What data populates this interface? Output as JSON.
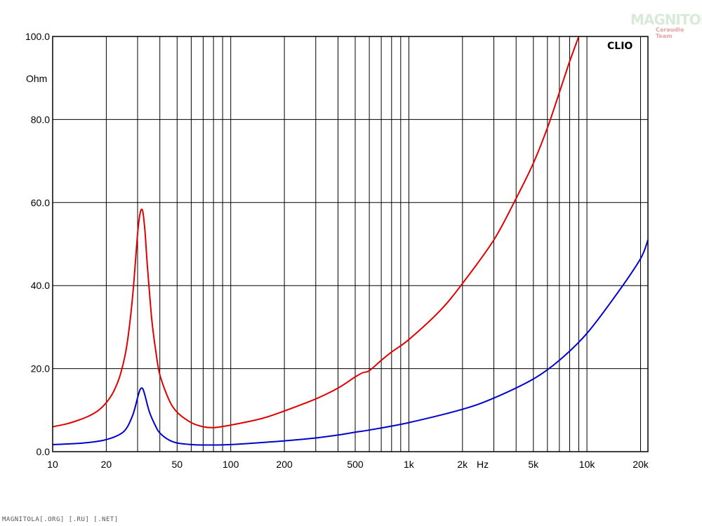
{
  "chart_data": {
    "type": "line",
    "title": "",
    "brand": "CLIO",
    "xlabel": "Hz",
    "ylabel": "Ohm",
    "xscale": "log",
    "xlim": [
      10,
      22000
    ],
    "ylim": [
      0,
      100
    ],
    "grid": true,
    "y_ticks": [
      "0.0",
      "20.0",
      "40.0",
      "60.0",
      "80.0",
      "100.0"
    ],
    "x_ticks": [
      {
        "value": 10,
        "label": "10"
      },
      {
        "value": 20,
        "label": "20"
      },
      {
        "value": 50,
        "label": "50"
      },
      {
        "value": 100,
        "label": "100"
      },
      {
        "value": 200,
        "label": "200"
      },
      {
        "value": 500,
        "label": "500"
      },
      {
        "value": 1000,
        "label": "1k"
      },
      {
        "value": 2000,
        "label": "2k"
      },
      {
        "value": 5000,
        "label": "5k"
      },
      {
        "value": 10000,
        "label": "10k"
      },
      {
        "value": 20000,
        "label": "20k"
      }
    ],
    "series": [
      {
        "color": "#e00000",
        "x": [
          10,
          12,
          14,
          16,
          18,
          20,
          22,
          24,
          26,
          28,
          30,
          31,
          32,
          33,
          34,
          36,
          38,
          40,
          45,
          50,
          60,
          70,
          80,
          100,
          150,
          200,
          300,
          400,
          500,
          550,
          600,
          700,
          800,
          1000,
          1500,
          2000,
          3000,
          4000,
          5000,
          6000,
          7000,
          8000,
          9000
        ],
        "y": [
          6.0,
          6.7,
          7.6,
          8.6,
          9.9,
          11.8,
          14.5,
          18.6,
          25.2,
          36.5,
          52.5,
          57.5,
          58.0,
          53.0,
          45.0,
          32.0,
          24.0,
          18.5,
          12.5,
          9.5,
          7.0,
          6.0,
          5.8,
          6.4,
          8.0,
          9.8,
          12.7,
          15.3,
          18.0,
          19.0,
          19.5,
          22.0,
          24.0,
          27.0,
          34.0,
          40.5,
          51.0,
          61.0,
          69.5,
          78.0,
          86.5,
          94.0,
          100.0
        ]
      },
      {
        "color": "#0000cc",
        "x": [
          10,
          15,
          20,
          25,
          28,
          30,
          31,
          32,
          33,
          35,
          38,
          40,
          45,
          50,
          60,
          70,
          100,
          200,
          300,
          400,
          500,
          600,
          1000,
          2000,
          3000,
          5000,
          7000,
          10000,
          15000,
          20000,
          22000
        ],
        "y": [
          1.7,
          2.1,
          2.9,
          4.8,
          8.5,
          13.0,
          15.0,
          15.2,
          13.5,
          9.5,
          6.0,
          4.5,
          2.8,
          2.1,
          1.7,
          1.6,
          1.7,
          2.6,
          3.3,
          4.0,
          4.7,
          5.2,
          7.0,
          10.2,
          12.9,
          17.5,
          22.0,
          28.5,
          38.5,
          46.5,
          51.0
        ]
      }
    ]
  },
  "footer": "MAGNITOLA[.ORG] [.RU] [.NET]",
  "logo": {
    "main": "MAGNITOLA",
    "sub": "Caraudio Team"
  }
}
